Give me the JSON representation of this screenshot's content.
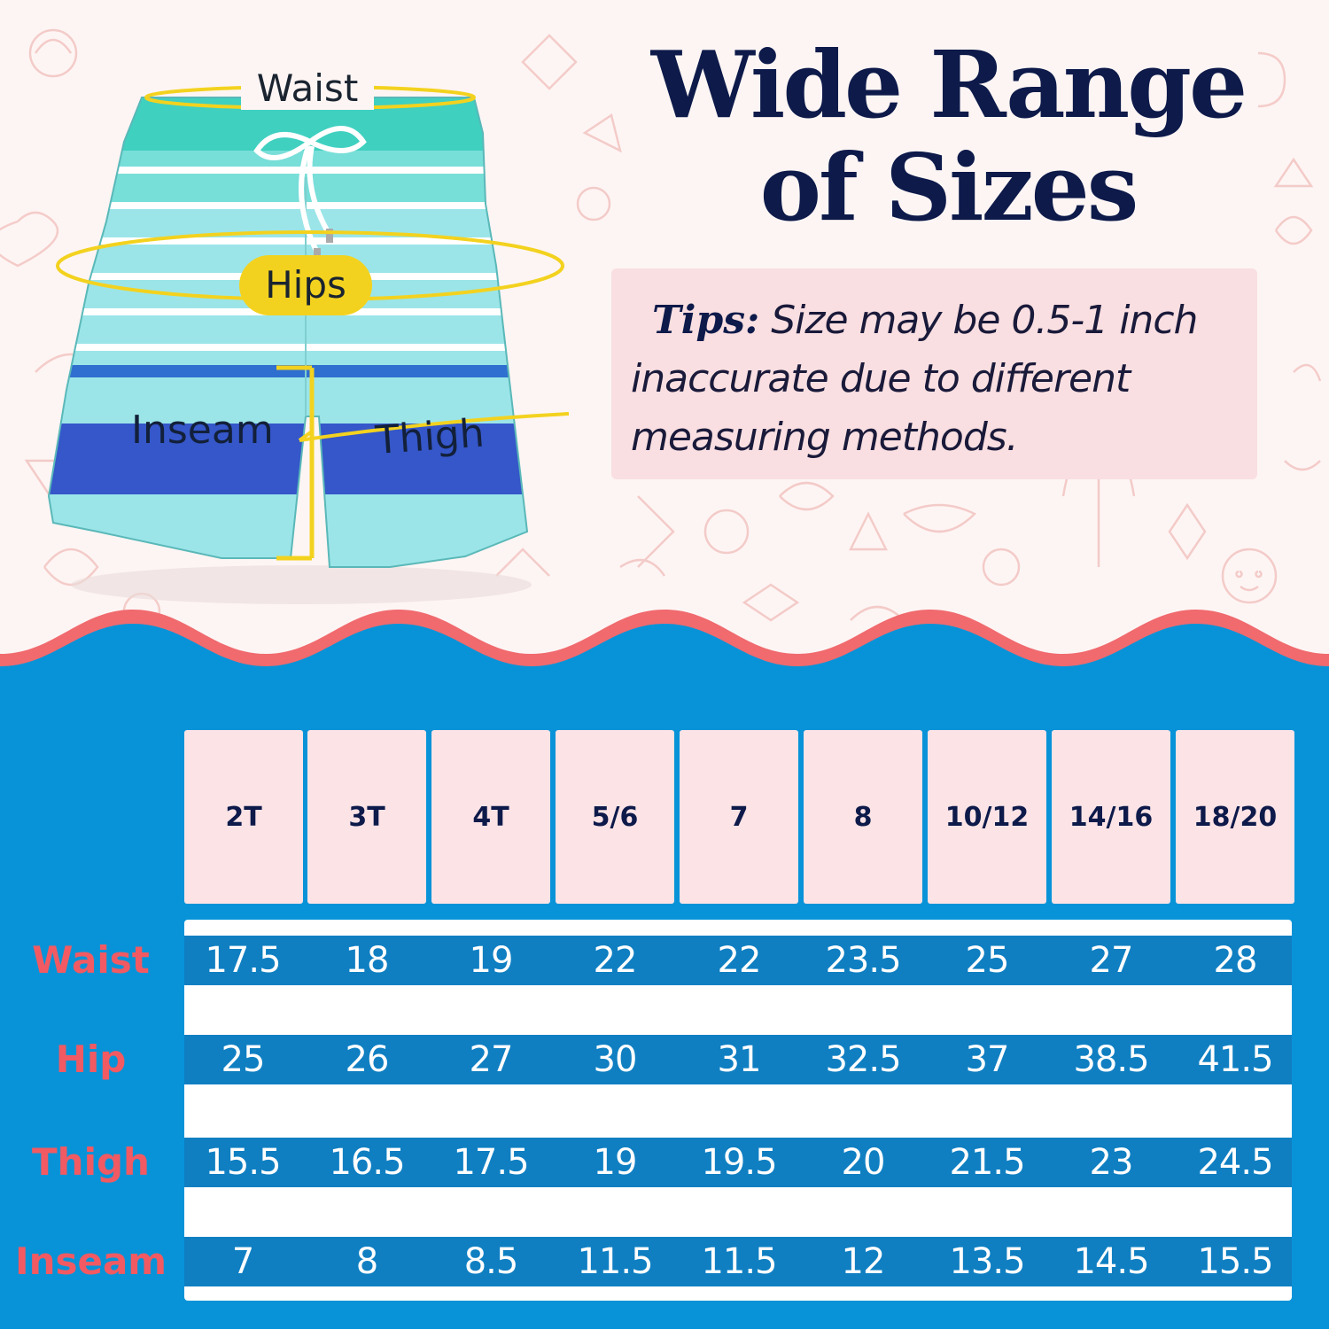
{
  "diagram": {
    "waist_label": "Waist",
    "hips_label": "Hips",
    "inseam_label": "Inseam",
    "thigh_label": "Thigh"
  },
  "title": {
    "line1": "Wide Range",
    "line2": "of Sizes"
  },
  "tips": {
    "label": "Tips:",
    "text": " Size may be 0.5-1 inch inaccurate due to different measuring methods."
  },
  "colors": {
    "navy": "#0d1a4a",
    "pink": "#f9dfe1",
    "coral": "#f15a62",
    "ocean": "#0893d8",
    "row": "#0f7fc2",
    "yellow": "#f3d21f"
  },
  "size_chart": {
    "sizes": [
      "2T",
      "3T",
      "4T",
      "5/6",
      "7",
      "8",
      "10/12",
      "14/16",
      "18/20"
    ],
    "rows": [
      {
        "label": "Waist",
        "values": [
          "17.5",
          "18",
          "19",
          "22",
          "22",
          "23.5",
          "25",
          "27",
          "28"
        ]
      },
      {
        "label": "Hip",
        "values": [
          "25",
          "26",
          "27",
          "30",
          "31",
          "32.5",
          "37",
          "38.5",
          "41.5"
        ]
      },
      {
        "label": "Thigh",
        "values": [
          "15.5",
          "16.5",
          "17.5",
          "19",
          "19.5",
          "20",
          "21.5",
          "23",
          "24.5"
        ]
      },
      {
        "label": "Inseam",
        "values": [
          "7",
          "8",
          "8.5",
          "11.5",
          "11.5",
          "12",
          "13.5",
          "14.5",
          "15.5"
        ]
      }
    ]
  }
}
